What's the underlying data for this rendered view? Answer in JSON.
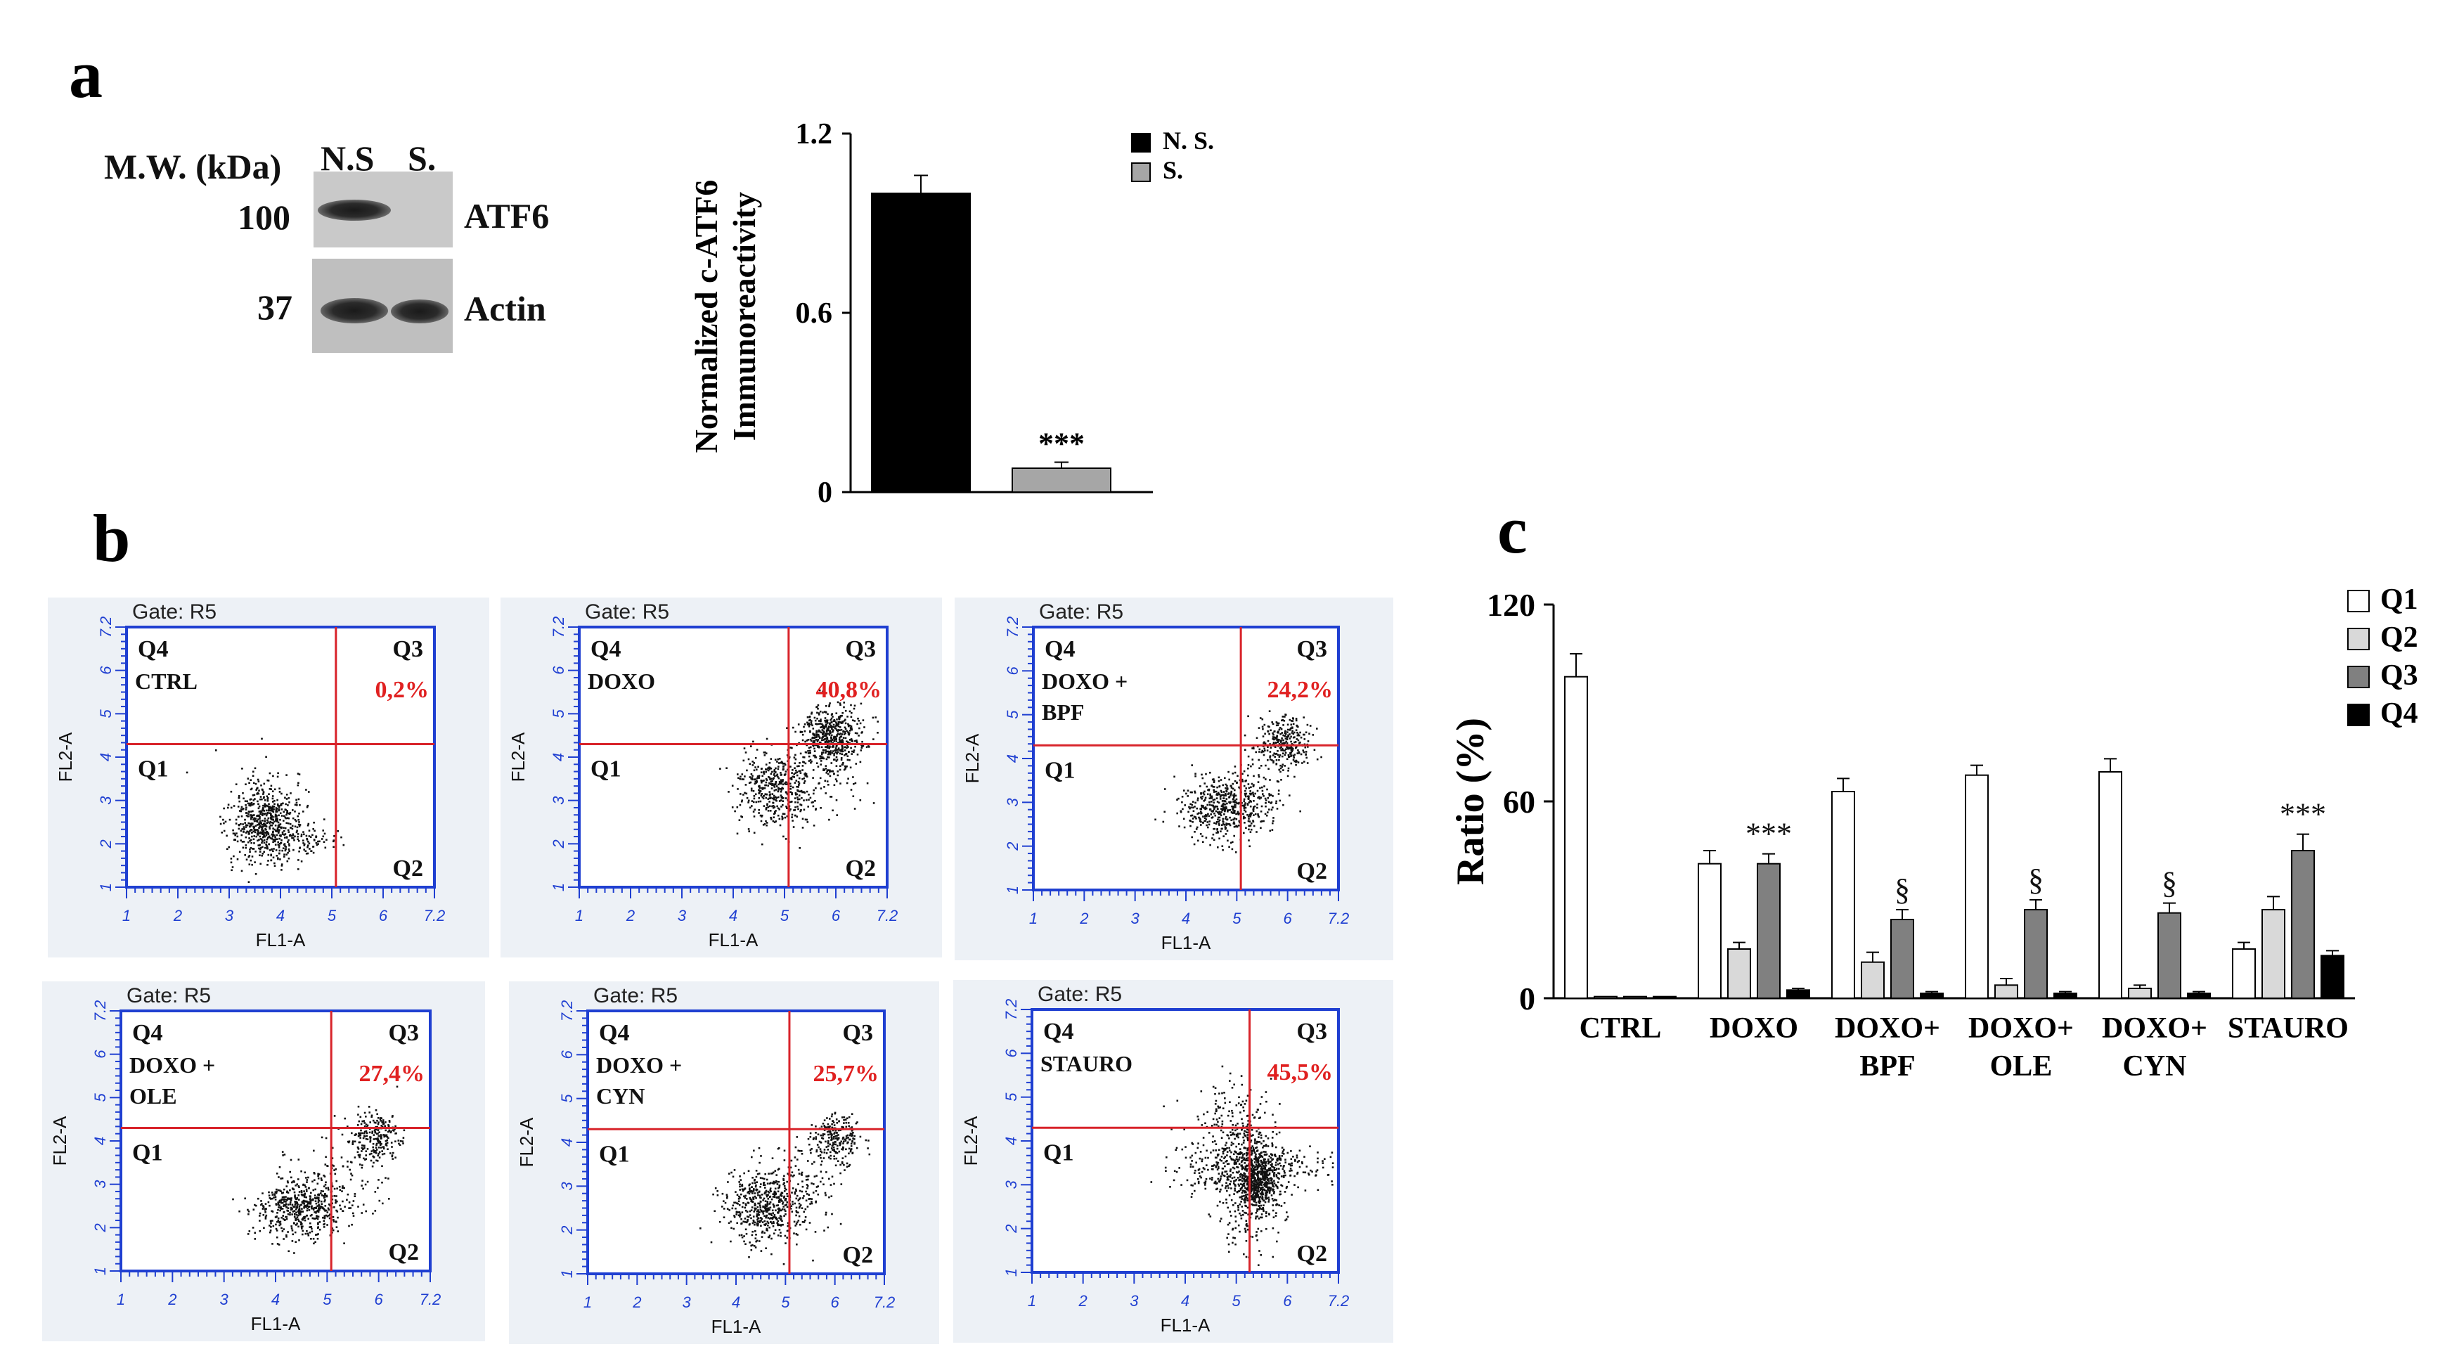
{
  "panels": {
    "a": "a",
    "b": "b",
    "c": "c"
  },
  "western_blot": {
    "mw_label": "M.W. (kDa)",
    "lanes": [
      "N.S",
      "S."
    ],
    "rows": [
      {
        "mw": "100",
        "protein": "ATF6"
      },
      {
        "mw": "37",
        "protein": "Actin"
      }
    ]
  },
  "flow_cytometry": {
    "gate_label": "Gate: R5",
    "x_axis": "FL1-A",
    "y_axis": "FL2-A",
    "quadrants": [
      "Q1",
      "Q2",
      "Q3",
      "Q4"
    ],
    "ticks": [
      "1",
      "2",
      "3",
      "4",
      "5",
      "6",
      "7.2"
    ],
    "plots": [
      {
        "label": [
          "CTRL"
        ],
        "q3_percent": "0,2%"
      },
      {
        "label": [
          "DOXO"
        ],
        "q3_percent": "40,8%"
      },
      {
        "label": [
          "DOXO +",
          "BPF"
        ],
        "q3_percent": "24,2%"
      },
      {
        "label": [
          "DOXO +",
          "OLE"
        ],
        "q3_percent": "27,4%"
      },
      {
        "label": [
          "DOXO +",
          "CYN"
        ],
        "q3_percent": "25,7%"
      },
      {
        "label": [
          "STAURO"
        ],
        "q3_percent": "45,5%"
      }
    ]
  },
  "colors": {
    "quadrant_line": "#d8232a",
    "axis_blue": "#1f3fd1",
    "percent_red": "#e02020",
    "bar_black": "#000000",
    "bar_grey": "#a6a6a6"
  },
  "chart_data": [
    {
      "type": "bar",
      "title": "",
      "xlabel": "",
      "ylabel": "Normalized  c-ATF6 Immunoreactivity",
      "ylabel_lines": [
        "Normalized  c-ATF6",
        "Immunoreactivity"
      ],
      "categories": [
        "N. S.",
        "S."
      ],
      "values": [
        1.0,
        0.08
      ],
      "errors": [
        0.06,
        0.02
      ],
      "colors": [
        "#000000",
        "#a6a6a6"
      ],
      "legend": [
        "N. S.",
        "S."
      ],
      "yticks": [
        "0",
        "0.6",
        "1.2"
      ],
      "ylim": [
        0,
        1.2
      ],
      "annotations": [
        "",
        "***"
      ]
    },
    {
      "type": "bar",
      "title": "",
      "xlabel": "",
      "ylabel": "Ratio (%)",
      "categories": [
        [
          "CTRL"
        ],
        [
          "DOXO"
        ],
        [
          "DOXO+",
          "BPF"
        ],
        [
          "DOXO+",
          "OLE"
        ],
        [
          "DOXO+",
          "CYN"
        ],
        [
          "STAURO"
        ]
      ],
      "series": [
        {
          "name": "Q1",
          "color": "#ffffff",
          "values": [
            98,
            41,
            63,
            68,
            69,
            15
          ],
          "errors": [
            7,
            4,
            4,
            3,
            4,
            2
          ]
        },
        {
          "name": "Q2",
          "color": "#d9d9d9",
          "values": [
            0.5,
            15,
            11,
            4,
            3,
            27
          ],
          "errors": [
            0,
            2,
            3,
            2,
            1,
            4
          ]
        },
        {
          "name": "Q3",
          "color": "#808080",
          "values": [
            0.5,
            41,
            24,
            27,
            26,
            45
          ],
          "errors": [
            0,
            3,
            3,
            3,
            3,
            5
          ]
        },
        {
          "name": "Q4",
          "color": "#000000",
          "values": [
            0.5,
            2.5,
            1.5,
            1.5,
            1.5,
            13
          ],
          "errors": [
            0,
            0.5,
            0.5,
            0.5,
            0.5,
            1.5
          ]
        }
      ],
      "annotations": [
        {
          "category": 1,
          "text": "***"
        },
        {
          "category": 2,
          "text": "§"
        },
        {
          "category": 3,
          "text": "§"
        },
        {
          "category": 4,
          "text": "§"
        },
        {
          "category": 5,
          "text": "***"
        }
      ],
      "yticks": [
        "0",
        "60",
        "120"
      ],
      "ylim": [
        0,
        120
      ]
    }
  ]
}
